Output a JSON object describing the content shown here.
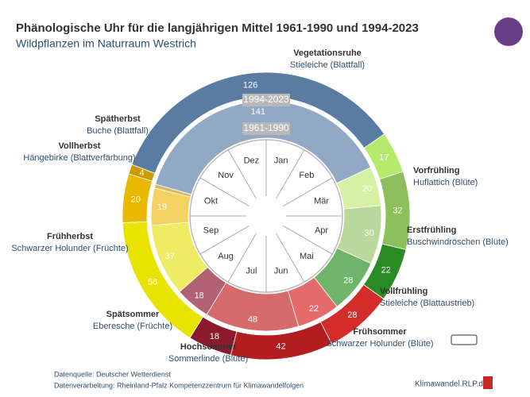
{
  "chart_data": {
    "type": "donut",
    "title": "Phänologische Uhr für die langjährigen Mittel 1961-1990 und 1994-2023",
    "subtitle": "Wildpflanzen im Naturraum Westrich",
    "categories": [
      "Vegetationsruhe",
      "Vorfrühling",
      "Erstfrühling",
      "Vollfrühling",
      "Frühsommer",
      "Hochsommer",
      "Spätsommer",
      "Frühherbst",
      "Vollherbst",
      "Spätherbst"
    ],
    "descriptions": [
      "Stieleiche (Blattfall)",
      "Huflattich (Blüte)",
      "Buschwindröschen (Blüte)",
      "Stieleiche (Blattaustrieb)",
      "Schwarzer Holunder (Blüte)",
      "Sommerlinde (Blüte)",
      "Eberesche (Früchte)",
      "Schwarzer Holunder (Früchte)",
      "Hängebirke (Blattverfärbung)",
      "Buche (Blattfall)"
    ],
    "series": [
      {
        "name": "1994-2023",
        "values": [
          126,
          17,
          32,
          22,
          28,
          42,
          18,
          56,
          20,
          4
        ],
        "colors": [
          "#5a7ca2",
          "#b6ea6c",
          "#8cc05c",
          "#2a8b24",
          "#d42b2b",
          "#b41d1d",
          "#8a1b2c",
          "#e9e300",
          "#e9b900",
          "#c99c00"
        ]
      },
      {
        "name": "1961-1990",
        "values": [
          141,
          20,
          30,
          28,
          22,
          48,
          18,
          37,
          19,
          2
        ],
        "value_labels": [
          "141",
          "20",
          "30",
          "28",
          "22",
          "48",
          "18",
          "37",
          "19",
          null
        ],
        "colors": [
          "#91a9c4",
          "#d6f1a4",
          "#b9d99c",
          "#70b46b",
          "#e56b6b",
          "#d56a6a",
          "#b06272",
          "#efeb62",
          "#f3d262",
          "#d9ba62"
        ]
      }
    ],
    "months": [
      "Jan",
      "Feb",
      "Mär",
      "Apr",
      "Mai",
      "Jun",
      "Jul",
      "Aug",
      "Sep",
      "Okt",
      "Nov",
      "Dez"
    ],
    "source": "Datenquelle: Deutscher Wetterdienst",
    "processing": "Datenverarbeitung: Rheinland-Pfalz Kompetenzzentrum für Klimawandelfolgen",
    "website": "Klimawandel.RLP.de"
  }
}
